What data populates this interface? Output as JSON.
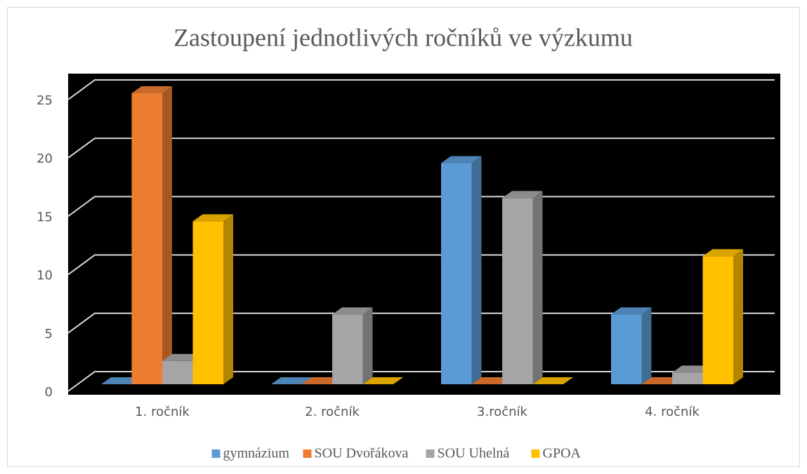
{
  "chart_data": {
    "type": "bar3d",
    "title": "Zastoupení jednotlivých ročníků ve výzkumu",
    "categories": [
      "1. ročník",
      "2. ročník",
      "3.ročník",
      "4. ročník"
    ],
    "series": [
      {
        "name": "gymnázium",
        "color": "#5b9bd5",
        "values": [
          0,
          0,
          19,
          6
        ]
      },
      {
        "name": "SOU Dvořákova",
        "color": "#ed7d31",
        "values": [
          25,
          0,
          0,
          0
        ]
      },
      {
        "name": "SOU Uhelná",
        "color": "#a5a5a5",
        "values": [
          2,
          6,
          16,
          1
        ]
      },
      {
        "name": "GPOA",
        "color": "#ffc000",
        "values": [
          14,
          0,
          0,
          11
        ]
      }
    ],
    "ylim": [
      0,
      25
    ],
    "yticks": [
      0,
      5,
      10,
      15,
      20,
      25
    ],
    "grid": true,
    "legend": "bottom"
  }
}
